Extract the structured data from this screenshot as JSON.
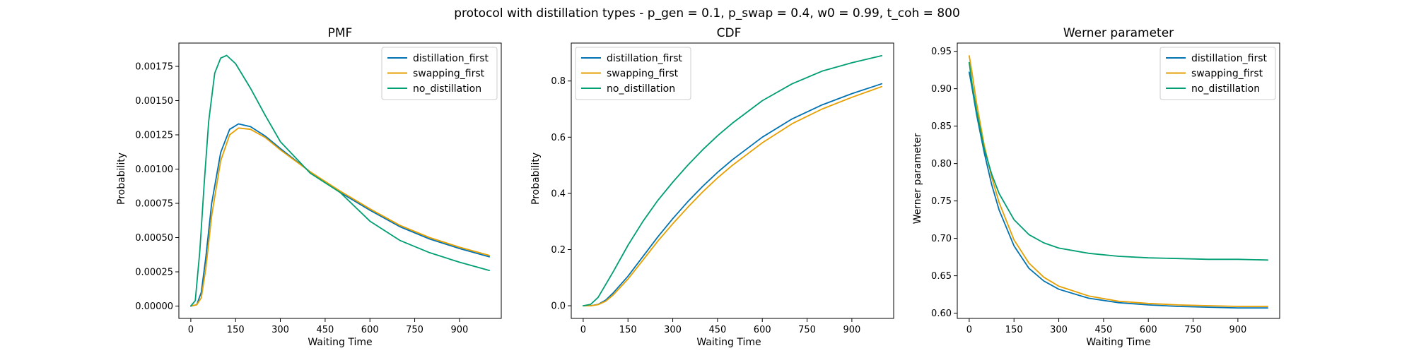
{
  "figure_title": "protocol with distillation types - p_gen = 0.1, p_swap = 0.4, w0 = 0.99, t_coh = 800",
  "colors": {
    "distillation_first": "#0072b2",
    "swapping_first": "#e69f00",
    "no_distillation": "#009e73"
  },
  "chart_data": [
    {
      "type": "line",
      "title": "PMF",
      "xlabel": "Waiting Time",
      "ylabel": "Probability",
      "xlim": [
        -40,
        1040
      ],
      "ylim": [
        -9e-05,
        0.00192
      ],
      "xticks": [
        0,
        150,
        300,
        450,
        600,
        750,
        900
      ],
      "yticks": [
        0.0,
        0.00025,
        0.0005,
        0.00075,
        0.001,
        0.00125,
        0.0015,
        0.00175
      ],
      "ytick_labels": [
        "0.00000",
        "0.00025",
        "0.00050",
        "0.00075",
        "0.00100",
        "0.00125",
        "0.00150",
        "0.00175"
      ],
      "legend_position": "top-right",
      "series": [
        {
          "name": "distillation_first",
          "color": "#0072b2",
          "x": [
            0,
            20,
            35,
            50,
            70,
            100,
            130,
            160,
            200,
            250,
            300,
            400,
            500,
            600,
            700,
            800,
            900,
            1000
          ],
          "y": [
            0.0,
            1e-05,
            0.0001,
            0.00035,
            0.00075,
            0.00112,
            0.00129,
            0.00133,
            0.00131,
            0.00124,
            0.00115,
            0.00098,
            0.00083,
            0.0007,
            0.00058,
            0.00049,
            0.00042,
            0.00036
          ]
        },
        {
          "name": "swapping_first",
          "color": "#e69f00",
          "x": [
            0,
            20,
            35,
            50,
            70,
            100,
            130,
            160,
            200,
            250,
            300,
            400,
            500,
            600,
            700,
            800,
            900,
            1000
          ],
          "y": [
            0.0,
            1e-05,
            6e-05,
            0.00027,
            0.00066,
            0.00106,
            0.00125,
            0.0013,
            0.00129,
            0.00123,
            0.00114,
            0.00098,
            0.00084,
            0.00071,
            0.00059,
            0.0005,
            0.00043,
            0.00037
          ]
        },
        {
          "name": "no_distillation",
          "color": "#009e73",
          "x": [
            0,
            15,
            30,
            45,
            60,
            80,
            100,
            120,
            150,
            200,
            250,
            300,
            400,
            500,
            600,
            700,
            800,
            900,
            1000
          ],
          "y": [
            0.0,
            4e-05,
            0.0004,
            0.0009,
            0.00135,
            0.0017,
            0.00181,
            0.00183,
            0.00177,
            0.00159,
            0.00139,
            0.0012,
            0.00097,
            0.00083,
            0.00062,
            0.00048,
            0.00039,
            0.00032,
            0.00026
          ]
        }
      ]
    },
    {
      "type": "line",
      "title": "CDF",
      "xlabel": "Waiting Time",
      "ylabel": "Probability",
      "xlim": [
        -40,
        1040
      ],
      "ylim": [
        -0.045,
        0.935
      ],
      "xticks": [
        0,
        150,
        300,
        450,
        600,
        750,
        900
      ],
      "yticks": [
        0.0,
        0.2,
        0.4,
        0.6,
        0.8
      ],
      "ytick_labels": [
        "0.0",
        "0.2",
        "0.4",
        "0.6",
        "0.8"
      ],
      "legend_position": "top-left",
      "series": [
        {
          "name": "distillation_first",
          "color": "#0072b2",
          "x": [
            0,
            25,
            50,
            75,
            100,
            150,
            200,
            250,
            300,
            350,
            400,
            450,
            500,
            600,
            700,
            800,
            900,
            1000
          ],
          "y": [
            0.0,
            0.0,
            0.005,
            0.02,
            0.045,
            0.105,
            0.175,
            0.245,
            0.31,
            0.37,
            0.425,
            0.475,
            0.52,
            0.6,
            0.665,
            0.715,
            0.755,
            0.79
          ]
        },
        {
          "name": "swapping_first",
          "color": "#e69f00",
          "x": [
            0,
            25,
            50,
            75,
            100,
            150,
            200,
            250,
            300,
            350,
            400,
            450,
            500,
            600,
            700,
            800,
            900,
            1000
          ],
          "y": [
            0.0,
            0.0,
            0.004,
            0.016,
            0.038,
            0.095,
            0.162,
            0.23,
            0.292,
            0.35,
            0.405,
            0.455,
            0.5,
            0.58,
            0.648,
            0.7,
            0.742,
            0.78
          ]
        },
        {
          "name": "no_distillation",
          "color": "#009e73",
          "x": [
            0,
            25,
            50,
            75,
            100,
            150,
            200,
            250,
            300,
            350,
            400,
            450,
            500,
            600,
            700,
            800,
            900,
            1000
          ],
          "y": [
            0.0,
            0.005,
            0.03,
            0.075,
            0.12,
            0.215,
            0.3,
            0.375,
            0.44,
            0.5,
            0.555,
            0.605,
            0.65,
            0.73,
            0.79,
            0.835,
            0.865,
            0.89
          ]
        }
      ]
    },
    {
      "type": "line",
      "title": "Werner parameter",
      "xlabel": "Waiting Time",
      "ylabel": "Werner parameter",
      "xlim": [
        -40,
        1040
      ],
      "ylim": [
        0.593,
        0.961
      ],
      "xticks": [
        0,
        150,
        300,
        450,
        600,
        750,
        900
      ],
      "yticks": [
        0.6,
        0.65,
        0.7,
        0.75,
        0.8,
        0.85,
        0.9,
        0.95
      ],
      "ytick_labels": [
        "0.60",
        "0.65",
        "0.70",
        "0.75",
        "0.80",
        "0.85",
        "0.90",
        "0.95"
      ],
      "legend_position": "top-right",
      "series": [
        {
          "name": "distillation_first",
          "color": "#0072b2",
          "x": [
            0,
            10,
            25,
            50,
            75,
            100,
            150,
            200,
            250,
            300,
            400,
            500,
            600,
            700,
            800,
            900,
            1000
          ],
          "y": [
            0.922,
            0.9,
            0.865,
            0.815,
            0.772,
            0.738,
            0.69,
            0.66,
            0.643,
            0.632,
            0.62,
            0.614,
            0.611,
            0.609,
            0.608,
            0.607,
            0.607
          ]
        },
        {
          "name": "swapping_first",
          "color": "#e69f00",
          "x": [
            0,
            10,
            25,
            50,
            75,
            100,
            150,
            200,
            250,
            300,
            400,
            500,
            600,
            700,
            800,
            900,
            1000
          ],
          "y": [
            0.944,
            0.92,
            0.88,
            0.825,
            0.782,
            0.748,
            0.698,
            0.667,
            0.648,
            0.636,
            0.623,
            0.616,
            0.613,
            0.611,
            0.61,
            0.609,
            0.609
          ]
        },
        {
          "name": "no_distillation",
          "color": "#009e73",
          "x": [
            0,
            10,
            25,
            50,
            75,
            100,
            150,
            200,
            250,
            300,
            400,
            500,
            600,
            700,
            800,
            900,
            1000
          ],
          "y": [
            0.935,
            0.905,
            0.87,
            0.82,
            0.786,
            0.76,
            0.725,
            0.705,
            0.694,
            0.687,
            0.68,
            0.676,
            0.674,
            0.673,
            0.672,
            0.672,
            0.671
          ]
        }
      ]
    }
  ]
}
